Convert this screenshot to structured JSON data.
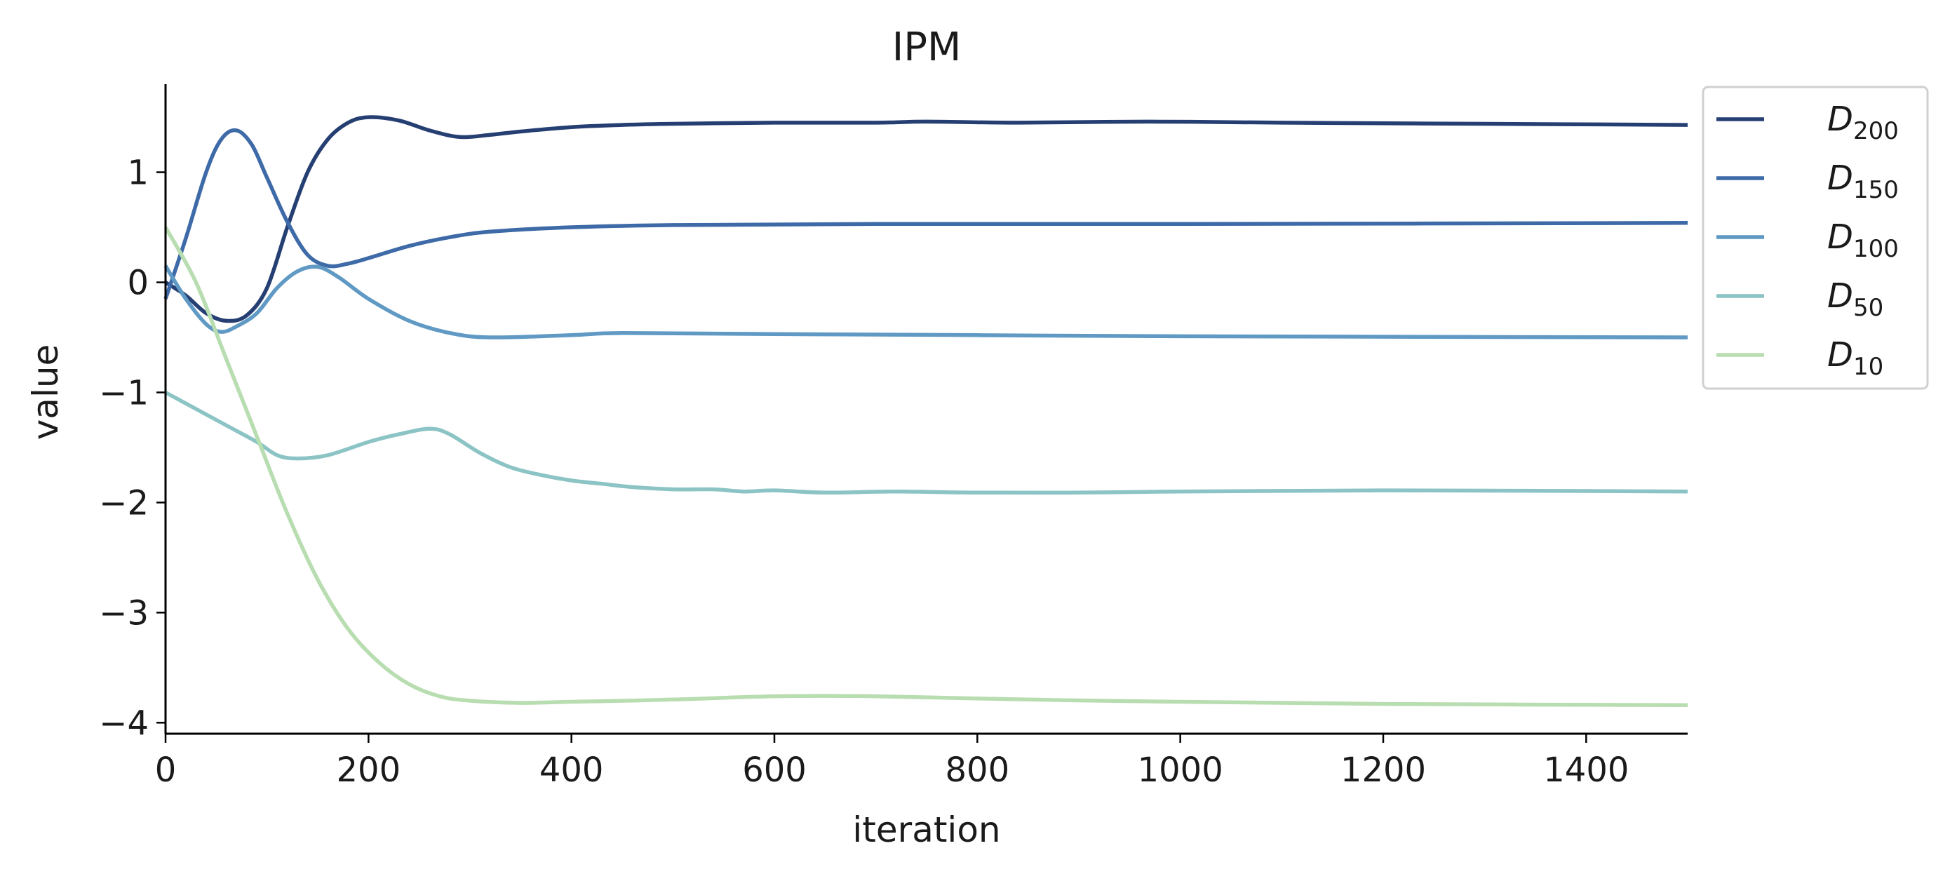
{
  "chart_data": {
    "type": "line",
    "title": "IPM",
    "xlabel": "iteration",
    "ylabel": "value",
    "xlim": [
      0,
      1500
    ],
    "ylim": [
      -4.1,
      1.8
    ],
    "x_ticks": [
      0,
      200,
      400,
      600,
      800,
      1000,
      1200,
      1400
    ],
    "x_tick_labels": [
      "0",
      "200",
      "400",
      "600",
      "800",
      "1000",
      "1200",
      "1400"
    ],
    "y_ticks": [
      1,
      0,
      -1,
      -2,
      -3,
      -4
    ],
    "y_tick_labels": [
      "1",
      "0",
      "−1",
      "−2",
      "−3",
      "−4"
    ],
    "grid": false,
    "legend_position": "outside-top-right",
    "series": [
      {
        "name": "D200",
        "label_main": "D",
        "label_sub": "200",
        "color": "#263f73",
        "points": [
          [
            0,
            0.0
          ],
          [
            20,
            -0.12
          ],
          [
            40,
            -0.28
          ],
          [
            60,
            -0.35
          ],
          [
            80,
            -0.3
          ],
          [
            100,
            -0.05
          ],
          [
            120,
            0.5
          ],
          [
            140,
            1.0
          ],
          [
            160,
            1.3
          ],
          [
            180,
            1.45
          ],
          [
            200,
            1.5
          ],
          [
            230,
            1.47
          ],
          [
            260,
            1.38
          ],
          [
            290,
            1.32
          ],
          [
            320,
            1.34
          ],
          [
            350,
            1.37
          ],
          [
            400,
            1.41
          ],
          [
            450,
            1.43
          ],
          [
            500,
            1.44
          ],
          [
            600,
            1.45
          ],
          [
            700,
            1.45
          ],
          [
            750,
            1.46
          ],
          [
            840,
            1.45
          ],
          [
            970,
            1.46
          ],
          [
            1100,
            1.45
          ],
          [
            1300,
            1.44
          ],
          [
            1500,
            1.43
          ]
        ]
      },
      {
        "name": "D150",
        "label_main": "D",
        "label_sub": "150",
        "color": "#3e6ba8",
        "points": [
          [
            0,
            -0.15
          ],
          [
            20,
            0.4
          ],
          [
            40,
            1.0
          ],
          [
            55,
            1.3
          ],
          [
            70,
            1.38
          ],
          [
            85,
            1.25
          ],
          [
            100,
            0.95
          ],
          [
            120,
            0.55
          ],
          [
            140,
            0.25
          ],
          [
            160,
            0.15
          ],
          [
            180,
            0.17
          ],
          [
            200,
            0.22
          ],
          [
            240,
            0.33
          ],
          [
            280,
            0.41
          ],
          [
            320,
            0.46
          ],
          [
            400,
            0.5
          ],
          [
            500,
            0.52
          ],
          [
            700,
            0.53
          ],
          [
            1000,
            0.53
          ],
          [
            1500,
            0.54
          ]
        ]
      },
      {
        "name": "D100",
        "label_main": "D",
        "label_sub": "100",
        "color": "#5f99c4",
        "points": [
          [
            0,
            0.15
          ],
          [
            20,
            -0.15
          ],
          [
            40,
            -0.38
          ],
          [
            55,
            -0.45
          ],
          [
            70,
            -0.4
          ],
          [
            90,
            -0.28
          ],
          [
            110,
            -0.05
          ],
          [
            130,
            0.1
          ],
          [
            150,
            0.14
          ],
          [
            170,
            0.05
          ],
          [
            200,
            -0.15
          ],
          [
            240,
            -0.35
          ],
          [
            280,
            -0.46
          ],
          [
            320,
            -0.5
          ],
          [
            400,
            -0.48
          ],
          [
            450,
            -0.46
          ],
          [
            600,
            -0.47
          ],
          [
            800,
            -0.48
          ],
          [
            1000,
            -0.49
          ],
          [
            1500,
            -0.5
          ]
        ]
      },
      {
        "name": "D50",
        "label_main": "D",
        "label_sub": "50",
        "color": "#8cc4c5",
        "points": [
          [
            0,
            -1.0
          ],
          [
            30,
            -1.15
          ],
          [
            60,
            -1.3
          ],
          [
            90,
            -1.45
          ],
          [
            110,
            -1.57
          ],
          [
            130,
            -1.6
          ],
          [
            160,
            -1.57
          ],
          [
            200,
            -1.45
          ],
          [
            230,
            -1.38
          ],
          [
            260,
            -1.33
          ],
          [
            280,
            -1.38
          ],
          [
            310,
            -1.55
          ],
          [
            340,
            -1.68
          ],
          [
            370,
            -1.75
          ],
          [
            400,
            -1.8
          ],
          [
            430,
            -1.83
          ],
          [
            460,
            -1.86
          ],
          [
            500,
            -1.88
          ],
          [
            540,
            -1.88
          ],
          [
            570,
            -1.9
          ],
          [
            600,
            -1.89
          ],
          [
            650,
            -1.91
          ],
          [
            720,
            -1.9
          ],
          [
            800,
            -1.91
          ],
          [
            900,
            -1.91
          ],
          [
            1000,
            -1.9
          ],
          [
            1200,
            -1.89
          ],
          [
            1500,
            -1.9
          ]
        ]
      },
      {
        "name": "D10",
        "label_main": "D",
        "label_sub": "10",
        "color": "#b8ddb0",
        "points": [
          [
            0,
            0.5
          ],
          [
            30,
            0.0
          ],
          [
            60,
            -0.7
          ],
          [
            90,
            -1.4
          ],
          [
            120,
            -2.1
          ],
          [
            150,
            -2.7
          ],
          [
            180,
            -3.15
          ],
          [
            210,
            -3.45
          ],
          [
            240,
            -3.65
          ],
          [
            270,
            -3.76
          ],
          [
            300,
            -3.8
          ],
          [
            350,
            -3.82
          ],
          [
            400,
            -3.81
          ],
          [
            500,
            -3.79
          ],
          [
            600,
            -3.76
          ],
          [
            700,
            -3.76
          ],
          [
            850,
            -3.79
          ],
          [
            1000,
            -3.81
          ],
          [
            1200,
            -3.83
          ],
          [
            1500,
            -3.84
          ]
        ]
      }
    ]
  }
}
